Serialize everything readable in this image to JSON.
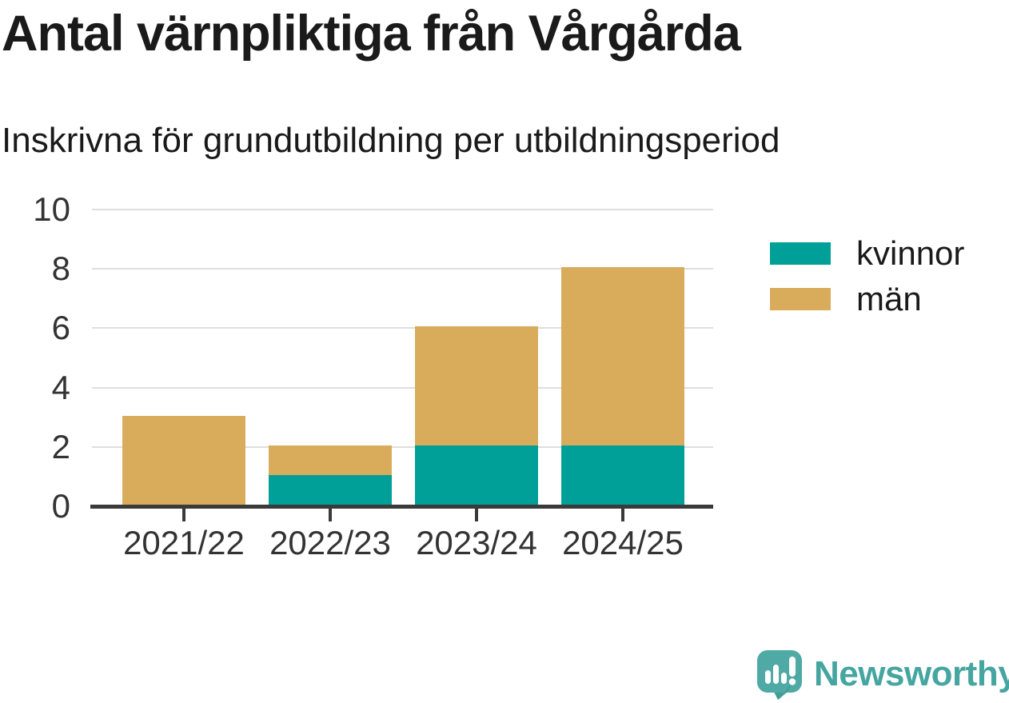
{
  "chart_data": {
    "type": "bar",
    "stacked": true,
    "title": "Antal värnpliktiga från Vårgårda",
    "subtitle": "Inskrivna för grundutbildning per utbildningsperiod",
    "categories": [
      "2021/22",
      "2022/23",
      "2023/24",
      "2024/25"
    ],
    "series": [
      {
        "name": "kvinnor",
        "color": "#00A099",
        "values": [
          0,
          1,
          2,
          2
        ]
      },
      {
        "name": "män",
        "color": "#D9AC5B",
        "values": [
          3,
          1,
          4,
          6
        ]
      }
    ],
    "xlabel": "",
    "ylabel": "",
    "ylim": [
      0,
      10
    ],
    "yticks": [
      0,
      2,
      4,
      6,
      8,
      10
    ],
    "grid": "horizontal",
    "legend_position": "right"
  },
  "footer": {
    "brand": "Newsworthy"
  },
  "colors": {
    "kvinnor": "#00A099",
    "man": "#D9AC5B",
    "brand_teal": "#45A5A0",
    "axis": "#3A3A3A",
    "gridline": "#DEDEDE",
    "text": "#1A1A1A"
  }
}
